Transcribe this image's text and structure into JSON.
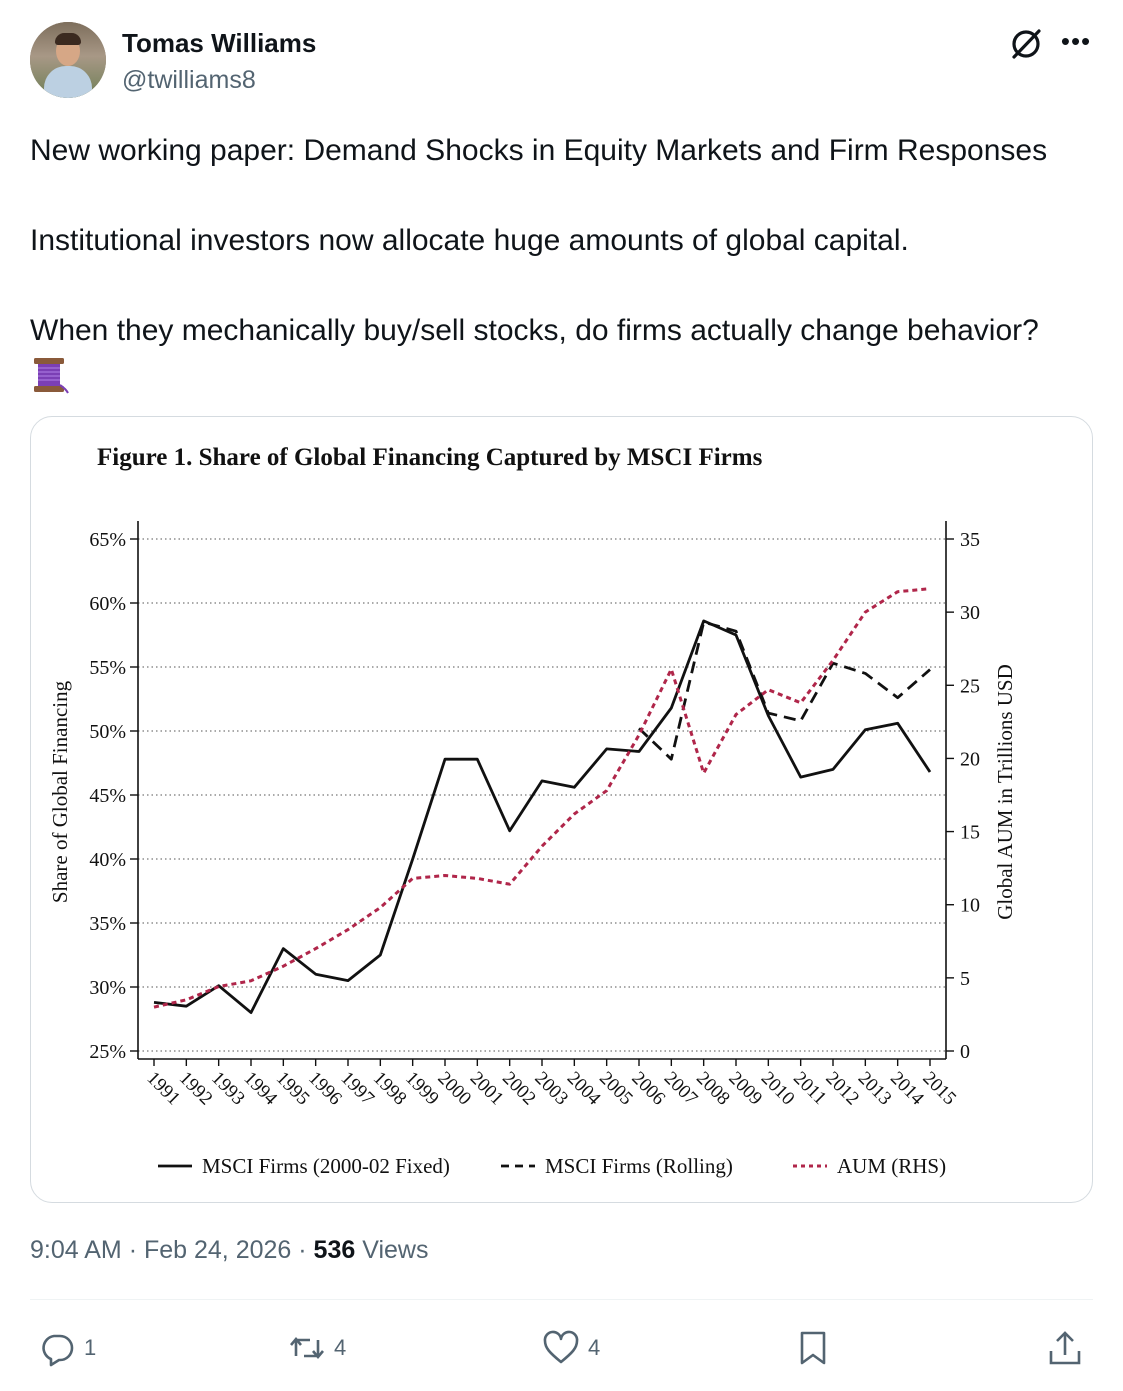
{
  "tweet": {
    "author_name": "Tomas Williams",
    "author_handle": "@twilliams8",
    "text": [
      "New working paper: Demand Shocks in Equity Markets and Firm Responses",
      "Institutional investors now allocate huge amounts of global capital.",
      "When they mechanically buy/sell stocks, do firms actually change behavior?"
    ],
    "emoji_icon": "thread-spool-icon",
    "time": "9:04 AM",
    "date": "Feb 24, 2026",
    "separator": "·",
    "views_count": "536",
    "views_label": "Views"
  },
  "actions": {
    "reply_count": "1",
    "retweet_count": "4",
    "like_count": "4"
  },
  "icons": [
    "avatar",
    "grok-icon",
    "more-icon",
    "reply-icon",
    "retweet-icon",
    "like-icon",
    "bookmark-icon",
    "share-icon"
  ],
  "colors": {
    "aum_series": "#b0264a",
    "text_secondary": "#536471"
  },
  "chart_data": {
    "type": "line",
    "title": "Figure 1. Share of Global Financing Captured by MSCI Firms",
    "ylabel": "Share of Global Financing",
    "y2label": "Global AUM in Trillions USD",
    "ylim": [
      25,
      65
    ],
    "y2lim": [
      0,
      35
    ],
    "yticks": [
      "25%",
      "30%",
      "35%",
      "40%",
      "45%",
      "50%",
      "55%",
      "60%",
      "65%"
    ],
    "y2ticks": [
      "0",
      "5",
      "10",
      "15",
      "20",
      "25",
      "30",
      "35"
    ],
    "grid": "horizontal dotted",
    "legend": "bottom",
    "x": [
      "1991",
      "1992",
      "1993",
      "1994",
      "1995",
      "1996",
      "1997",
      "1998",
      "1999",
      "2000",
      "2001",
      "2002",
      "2003",
      "2004",
      "2005",
      "2006",
      "2007",
      "2008",
      "2009",
      "2010",
      "2011",
      "2012",
      "2013",
      "2014",
      "2015"
    ],
    "series": [
      {
        "name": "MSCI Firms (2000-02 Fixed)",
        "axis": "left",
        "style": "solid",
        "values": [
          28.8,
          28.5,
          30.1,
          28.0,
          33.0,
          31.0,
          30.5,
          32.5,
          40.0,
          47.8,
          47.8,
          42.2,
          46.1,
          45.6,
          48.6,
          48.4,
          51.8,
          58.6,
          57.5,
          51.2,
          46.4,
          47.0,
          50.1,
          50.6,
          46.8
        ]
      },
      {
        "name": "MSCI Firms (Rolling)",
        "axis": "left",
        "style": "dashed",
        "values": [
          null,
          null,
          null,
          null,
          null,
          null,
          null,
          null,
          null,
          null,
          null,
          null,
          null,
          null,
          null,
          50.2,
          47.8,
          58.5,
          57.8,
          51.4,
          50.8,
          55.3,
          54.5,
          52.6,
          54.8
        ]
      },
      {
        "name": "AUM (RHS)",
        "axis": "right",
        "style": "dotted",
        "color": "#b0264a",
        "values": [
          3.0,
          3.5,
          4.4,
          4.8,
          5.8,
          7.0,
          8.3,
          9.8,
          11.8,
          12.0,
          11.8,
          11.4,
          14.0,
          16.2,
          17.8,
          21.6,
          26.1,
          19.0,
          23.0,
          24.7,
          23.8,
          26.7,
          30.0,
          31.4,
          31.6
        ]
      }
    ]
  }
}
